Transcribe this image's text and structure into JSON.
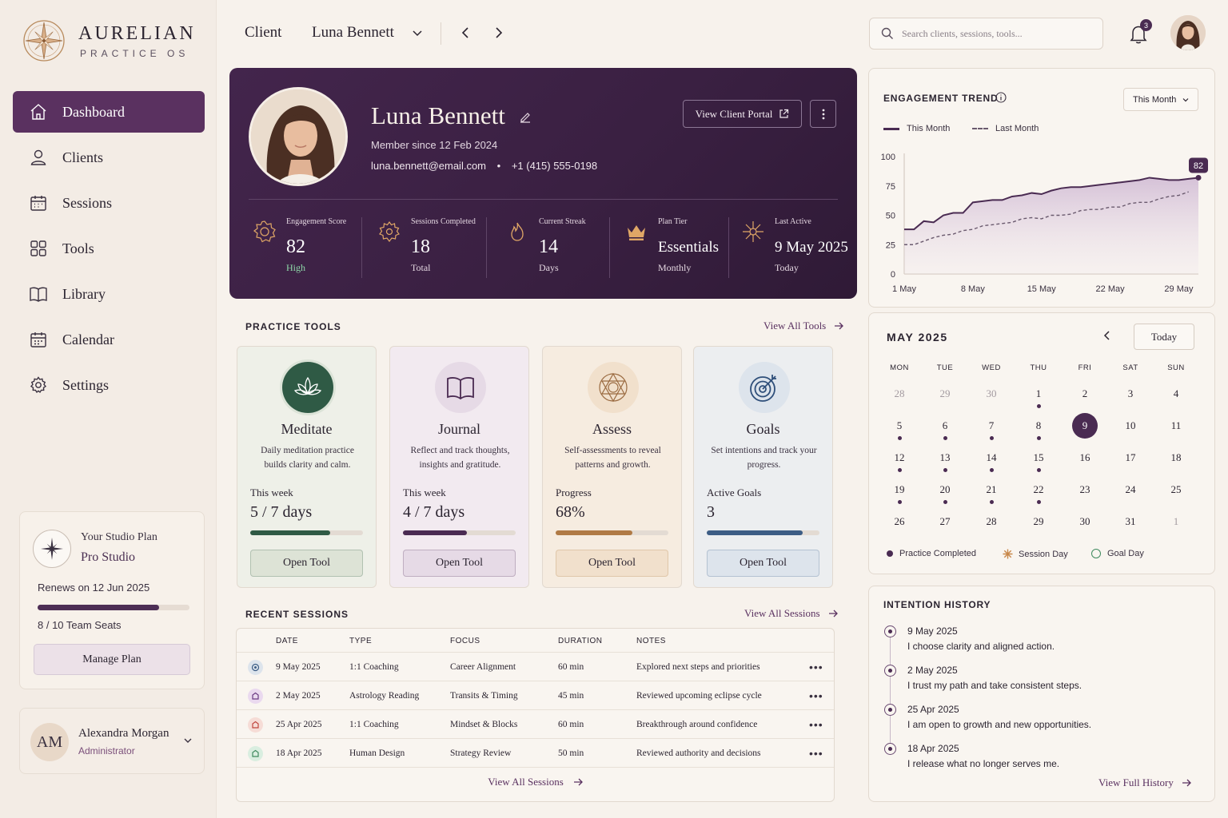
{
  "brand": {
    "name": "AURELIAN",
    "sub": "PRACTICE OS"
  },
  "nav": [
    {
      "label": "Dashboard",
      "icon": "home-icon",
      "active": true
    },
    {
      "label": "Clients",
      "icon": "user-icon"
    },
    {
      "label": "Sessions",
      "icon": "calendar-grid-icon"
    },
    {
      "label": "Tools",
      "icon": "grid-icon"
    },
    {
      "label": "Library",
      "icon": "book-icon"
    },
    {
      "label": "Calendar",
      "icon": "calendar-icon"
    },
    {
      "label": "Settings",
      "icon": "gear-icon"
    }
  ],
  "plan": {
    "label": "Your Studio Plan",
    "name": "Pro Studio",
    "renews": "Renews on 12 Jun 2025",
    "seats": "8 / 10 Team Seats",
    "seats_fraction": 0.8,
    "button": "Manage Plan"
  },
  "user": {
    "initials": "AM",
    "name": "Alexandra Morgan",
    "role": "Administrator"
  },
  "topbar": {
    "crumb_label": "Client",
    "client_name": "Luna Bennett",
    "search_placeholder": "Search clients, sessions, tools...",
    "notification_count": "3"
  },
  "client": {
    "name": "Luna Bennett",
    "member_since": "Member since 12 Feb 2024",
    "email": "luna.bennett@email.com",
    "phone": "+1 (415) 555-0198",
    "portal_button": "View Client Portal",
    "stats": [
      {
        "label": "Engagement Score",
        "value": "82",
        "sub": "High",
        "icon": "sun-badge-icon"
      },
      {
        "label": "Sessions Completed",
        "value": "18",
        "sub": "Total",
        "icon": "gear-badge-icon"
      },
      {
        "label": "Current Streak",
        "value": "14",
        "sub": "Days",
        "icon": "flame-icon"
      },
      {
        "label": "Plan Tier",
        "value": "Essentials",
        "sub": "Monthly",
        "icon": "crown-icon"
      },
      {
        "label": "Last Active",
        "value": "9 May 2025",
        "sub": "Today",
        "icon": "sparkle-icon"
      }
    ]
  },
  "tools_section": {
    "title": "PRACTICE TOOLS",
    "view_all": "View All Tools"
  },
  "tools": [
    {
      "name": "Meditate",
      "desc": "Daily meditation practice builds clarity and calm.",
      "metric_label": "This week",
      "metric_value": "5 / 7 days",
      "progress": 0.71,
      "button": "Open Tool",
      "icon": "lotus-icon",
      "accent": "#2f5a45",
      "bg": "#eef0e8",
      "btn_bg": "#dde3d6"
    },
    {
      "name": "Journal",
      "desc": "Reflect and track thoughts, insights and gratitude.",
      "metric_label": "This week",
      "metric_value": "4 / 7 days",
      "progress": 0.57,
      "button": "Open Tool",
      "icon": "book-open-icon",
      "accent": "#4a2b52",
      "bg": "#f2eaf0",
      "btn_bg": "#e6dae6"
    },
    {
      "name": "Assess",
      "desc": "Self-assessments to reveal patterns and growth.",
      "metric_label": "Progress",
      "metric_value": "68%",
      "progress": 0.68,
      "button": "Open Tool",
      "icon": "mandala-icon",
      "accent": "#b07a45",
      "bg": "#f6ece0",
      "btn_bg": "#f1e0cc"
    },
    {
      "name": "Goals",
      "desc": "Set intentions and track your progress.",
      "metric_label": "Active Goals",
      "metric_value": "3",
      "progress": 0.85,
      "button": "Open Tool",
      "icon": "target-icon",
      "accent": "#3d5d85",
      "bg": "#eceef0",
      "btn_bg": "#dde4ec"
    }
  ],
  "sessions_section": {
    "title": "RECENT SESSIONS",
    "view_all": "View All Sessions",
    "footer": "View All Sessions"
  },
  "sessions_table": {
    "headers": [
      "DATE",
      "TYPE",
      "FOCUS",
      "DURATION",
      "NOTES"
    ],
    "rows": [
      {
        "date": "9 May 2025",
        "type": "1:1 Coaching",
        "focus": "Career Alignment",
        "duration": "60 min",
        "notes": "Explored next steps and priorities",
        "icon_color": "#3d5d85",
        "icon_bg": "#dde4ec"
      },
      {
        "date": "2 May 2025",
        "type": "Astrology Reading",
        "focus": "Transits & Timing",
        "duration": "45 min",
        "notes": "Reviewed upcoming eclipse cycle",
        "icon_color": "#6a3a82",
        "icon_bg": "#ead9ef"
      },
      {
        "date": "25 Apr 2025",
        "type": "1:1 Coaching",
        "focus": "Mindset & Blocks",
        "duration": "60 min",
        "notes": "Breakthrough around confidence",
        "icon_color": "#c0453e",
        "icon_bg": "#f6dcd6"
      },
      {
        "date": "18 Apr 2025",
        "type": "Human Design",
        "focus": "Strategy Review",
        "duration": "50 min",
        "notes": "Reviewed authority and decisions",
        "icon_color": "#3f8a5e",
        "icon_bg": "#d9eee0"
      }
    ]
  },
  "engagement": {
    "title": "ENGAGEMENT TREND",
    "period": "This Month",
    "legend_this": "This Month",
    "legend_last": "Last Month",
    "marker": "82"
  },
  "chart_data": {
    "type": "area",
    "title": "ENGAGEMENT TREND",
    "x_ticks": [
      "1 May",
      "8 May",
      "15 May",
      "22 May",
      "29 May"
    ],
    "y_ticks": [
      0,
      25,
      50,
      75,
      100
    ],
    "ylim": [
      0,
      100
    ],
    "xlim": [
      1,
      31
    ],
    "series": [
      {
        "name": "This Month",
        "style": "solid",
        "color": "#4a2b52",
        "x": [
          1,
          2,
          3,
          4,
          5,
          6,
          7,
          8,
          9,
          10,
          11,
          12,
          13,
          14,
          15,
          16,
          17,
          18,
          19,
          20,
          21,
          22,
          23,
          24,
          25,
          26,
          27,
          28,
          29,
          30,
          31
        ],
        "y": [
          38,
          38,
          45,
          44,
          50,
          52,
          52,
          61,
          62,
          63,
          63,
          66,
          67,
          69,
          68,
          71,
          73,
          74,
          74,
          75,
          76,
          77,
          78,
          79,
          80,
          82,
          81,
          80,
          80,
          81,
          82
        ]
      },
      {
        "name": "Last Month",
        "style": "dashed",
        "color": "#6a5a6e",
        "x": [
          1,
          2,
          3,
          4,
          5,
          6,
          7,
          8,
          9,
          10,
          11,
          12,
          13,
          14,
          15,
          16,
          17,
          18,
          19,
          20,
          21,
          22,
          23,
          24,
          25,
          26,
          27,
          28,
          29,
          30
        ],
        "y": [
          25,
          25,
          28,
          31,
          33,
          34,
          37,
          38,
          41,
          42,
          43,
          44,
          47,
          48,
          47,
          50,
          50,
          51,
          54,
          55,
          55,
          57,
          57,
          60,
          61,
          61,
          64,
          66,
          67,
          70
        ]
      }
    ],
    "grid": false,
    "legend": "top-left"
  },
  "calendar": {
    "title": "MAY 2025",
    "today_button": "Today",
    "dow": [
      "MON",
      "TUE",
      "WED",
      "THU",
      "FRI",
      "SAT",
      "SUN"
    ],
    "weeks": [
      [
        {
          "d": "28",
          "muted": true
        },
        {
          "d": "29",
          "muted": true
        },
        {
          "d": "30",
          "muted": true
        },
        {
          "d": "1",
          "dot": true
        },
        {
          "d": "2"
        },
        {
          "d": "3"
        },
        {
          "d": "4"
        }
      ],
      [
        {
          "d": "5",
          "dot": true
        },
        {
          "d": "6",
          "dot": true
        },
        {
          "d": "7",
          "dot": true
        },
        {
          "d": "8",
          "dot": true
        },
        {
          "d": "9",
          "selected": true
        },
        {
          "d": "10"
        },
        {
          "d": "11"
        }
      ],
      [
        {
          "d": "12",
          "dot": true
        },
        {
          "d": "13",
          "dot": true
        },
        {
          "d": "14",
          "dot": true
        },
        {
          "d": "15",
          "dot": true
        },
        {
          "d": "16"
        },
        {
          "d": "17"
        },
        {
          "d": "18"
        }
      ],
      [
        {
          "d": "19",
          "dot": true
        },
        {
          "d": "20",
          "dot": true
        },
        {
          "d": "21",
          "dot": true
        },
        {
          "d": "22",
          "dot": true
        },
        {
          "d": "23"
        },
        {
          "d": "24"
        },
        {
          "d": "25"
        }
      ],
      [
        {
          "d": "26"
        },
        {
          "d": "27"
        },
        {
          "d": "28"
        },
        {
          "d": "29"
        },
        {
          "d": "30"
        },
        {
          "d": "31"
        },
        {
          "d": "1",
          "muted": true
        }
      ]
    ],
    "legend": [
      "Practice Completed",
      "Session Day",
      "Goal Day"
    ]
  },
  "intentions": {
    "title": "INTENTION HISTORY",
    "footer": "View Full History",
    "items": [
      {
        "date": "9 May 2025",
        "text": "I choose clarity and aligned action."
      },
      {
        "date": "2 May 2025",
        "text": "I trust my path and take consistent steps."
      },
      {
        "date": "25 Apr 2025",
        "text": "I am open to growth and new opportunities."
      },
      {
        "date": "18 Apr 2025",
        "text": "I release what no longer serves me."
      }
    ]
  }
}
